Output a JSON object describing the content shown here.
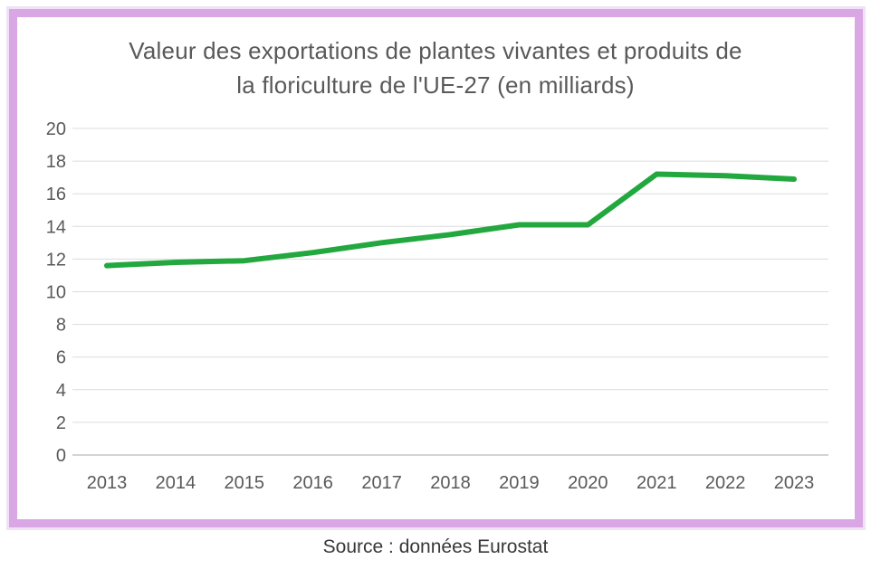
{
  "chart": {
    "title_line1": "Valeur des exportations de plantes vivantes et produits de",
    "title_line2": "la floriculture de l'UE-27 (en milliards)",
    "caption": "Source : données Eurostat"
  },
  "chart_data": {
    "type": "line",
    "title": "Valeur des exportations de plantes vivantes et produits de la floriculture de l'UE-27 (en milliards)",
    "categories": [
      "2013",
      "2014",
      "2015",
      "2016",
      "2017",
      "2018",
      "2019",
      "2020",
      "2021",
      "2022",
      "2023"
    ],
    "values": [
      11.6,
      11.8,
      11.9,
      12.4,
      13.0,
      13.5,
      14.1,
      14.1,
      17.2,
      17.1,
      16.9
    ],
    "xlabel": "",
    "ylabel": "",
    "ylim": [
      0,
      20
    ],
    "ytick_step": 2,
    "grid": true,
    "legend": "none",
    "colors": {
      "line": "#22a83e",
      "gridline": "#dcdcdc",
      "axis_line": "#c6c6c6",
      "tick_label": "#595959",
      "title": "#595959",
      "caption": "#383838",
      "card_border": "#d9a7e3"
    }
  }
}
